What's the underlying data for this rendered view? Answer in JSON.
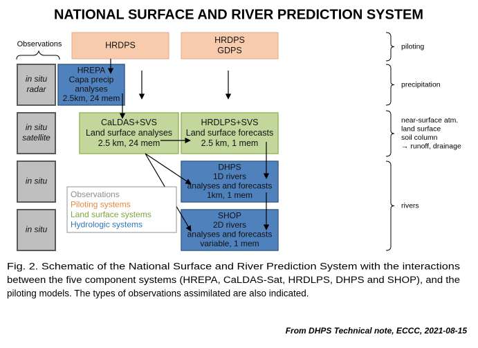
{
  "title": "NATIONAL SURFACE AND RIVER PREDICTION SYSTEM",
  "observations_label": "Observations",
  "observation_boxes": [
    [
      "in situ",
      "radar"
    ],
    [
      "in situ",
      "satellite"
    ],
    [
      "in situ"
    ],
    [
      "in situ"
    ]
  ],
  "piloting_boxes": [
    [
      "HRDPS"
    ],
    [
      "HRDPS",
      "GDPS"
    ]
  ],
  "hydrologic_boxes": [
    [
      "HREPA",
      "Capa precip",
      "analyses",
      "2.5km, 24 mem"
    ],
    [
      "DHPS",
      "1D rivers",
      "analyses and forecasts",
      "1km, 1 mem"
    ],
    [
      "SHOP",
      "2D rivers",
      "analyses and forecasts",
      "variable, 1 mem"
    ]
  ],
  "land_surface_boxes": [
    [
      "CaLDAS+SVS",
      "Land surface analyses",
      "2.5 km, 24 mem"
    ],
    [
      "HRDLPS+SVS",
      "Land surface forecasts",
      "2.5 km, 1 mem"
    ]
  ],
  "legend": [
    "Observations",
    "Piloting systems",
    "Land surface systems",
    "Hydrologic systems"
  ],
  "brackets": [
    [
      "piloting"
    ],
    [
      "precipitation"
    ],
    [
      "near-surface atm.",
      "land surface",
      "soil column",
      "→ runoff, drainage"
    ],
    [
      "rivers"
    ]
  ],
  "caption": [
    "Fig. 2. Schematic of the National Surface and River Prediction System with the interactions",
    "between the five component systems (HREPA, CaLDAS-Sat, HRDLPS, DHPS and SHOP), and the",
    "piloting models. The types of observations assimilated are also indicated."
  ],
  "source": "From DHPS Technical note, ECCC, 2021-08-15"
}
